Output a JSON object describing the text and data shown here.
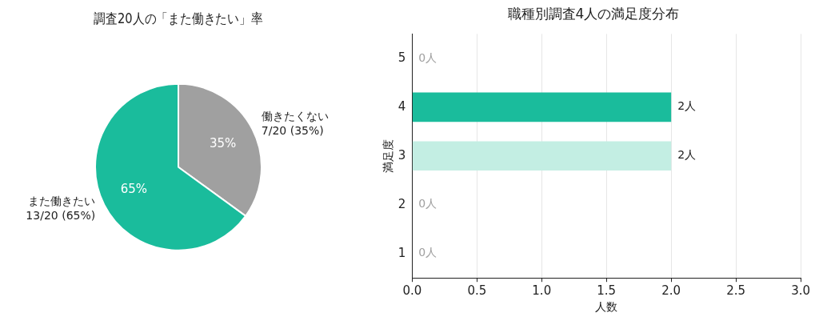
{
  "chart_data": [
    {
      "type": "pie",
      "title": "調査20人の「また働きたい」率",
      "categories": [
        "働きたくない",
        "また働きたい"
      ],
      "values": [
        35,
        65
      ],
      "colors": [
        "#a0a0a0",
        "#1abc9c"
      ],
      "value_labels": [
        "35%",
        "65%"
      ],
      "annotations": [
        {
          "text": "7/20 (35%)",
          "x": "働きたくない"
        },
        {
          "text": "13/20 (65%)",
          "x": "また働きたい"
        }
      ],
      "legend": false
    },
    {
      "type": "bar",
      "orientation": "horizontal",
      "title": "職種別調査4人の満足度分布",
      "xlabel": "人数",
      "ylabel": "満足度",
      "categories": [
        "5",
        "4",
        "3",
        "2",
        "1"
      ],
      "values": [
        0,
        2,
        2,
        0,
        0
      ],
      "colors": [
        "#1abc9c",
        "#1abc9c",
        "#c3eee3",
        "#1abc9c",
        "#1abc9c"
      ],
      "value_labels": [
        "0人",
        "2人",
        "2人",
        "0人",
        "0人"
      ],
      "xlim": [
        0,
        3
      ],
      "xticks": [
        {
          "value": 0,
          "label": "0.0"
        },
        {
          "value": 0.5,
          "label": "0.5"
        },
        {
          "value": 1,
          "label": "1.0"
        },
        {
          "value": 1.5,
          "label": "1.5"
        },
        {
          "value": 2,
          "label": "2.0"
        },
        {
          "value": 2.5,
          "label": "2.5"
        },
        {
          "value": 3,
          "label": "3.0"
        }
      ],
      "grid": "x",
      "legend": false
    }
  ]
}
